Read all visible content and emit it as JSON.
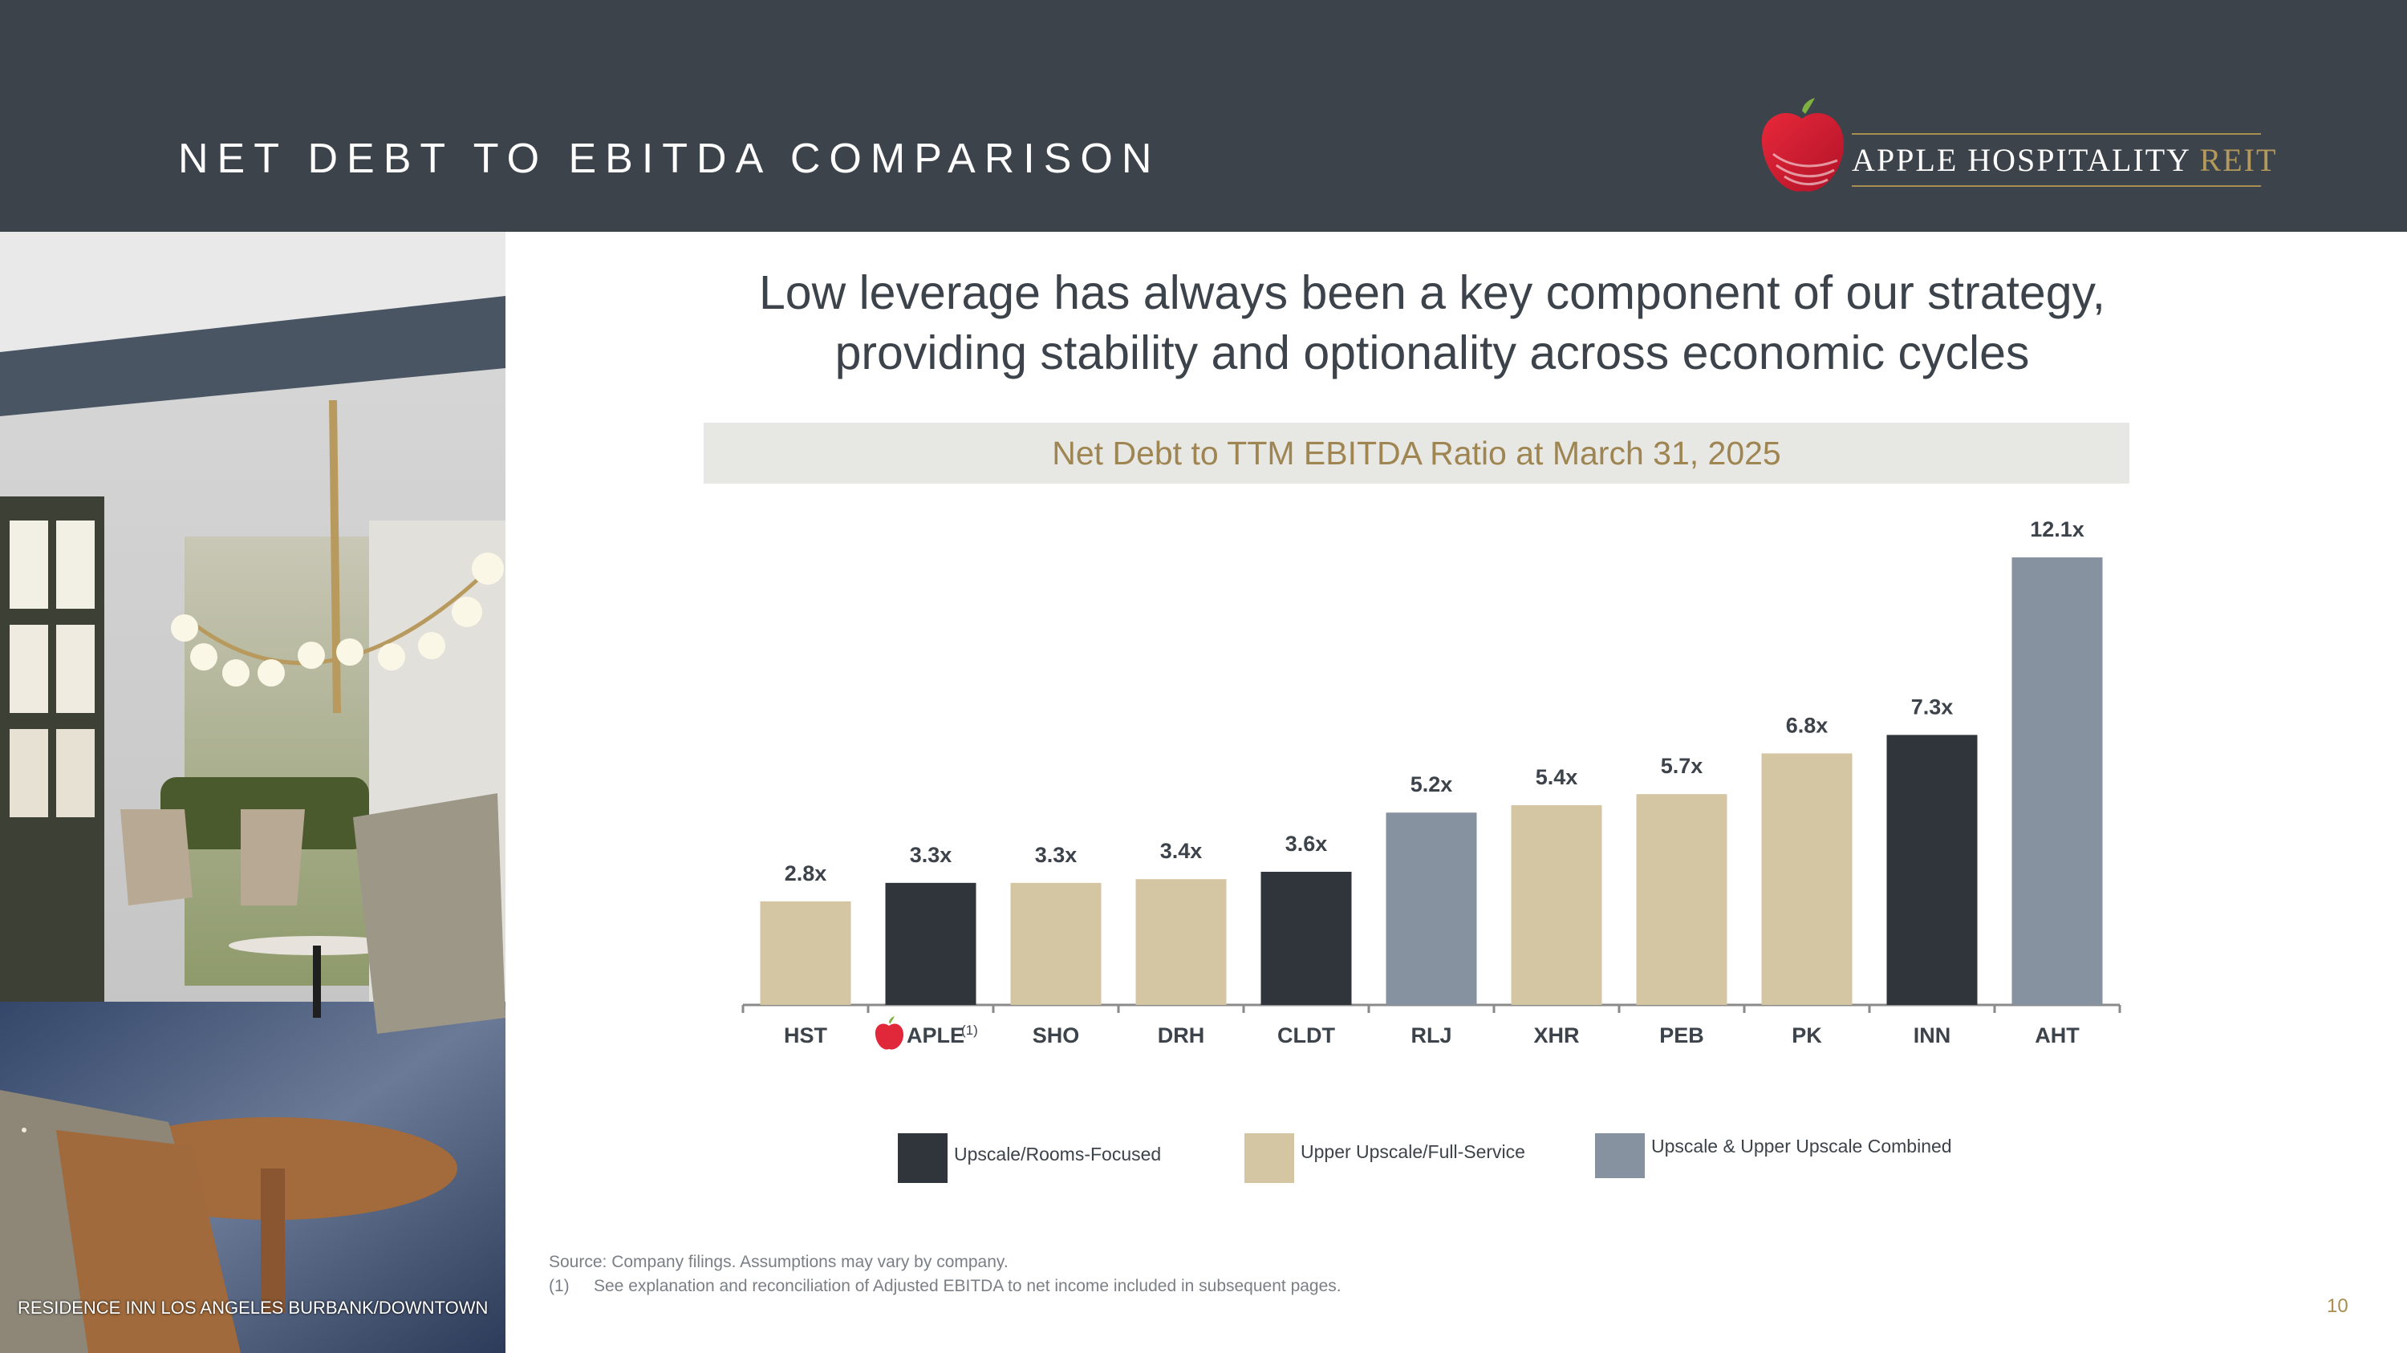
{
  "header": {
    "title": "NET DEBT TO EBITDA COMPARISON",
    "logo_text": "APPLE HOSPITALITY",
    "logo_accent": "REIT"
  },
  "photo": {
    "caption": "RESIDENCE INN LOS ANGELES BURBANK/DOWNTOWN"
  },
  "headline": {
    "line1": "Low leverage has always been a key component of our strategy,",
    "line2": "providing stability and optionality across economic cycles"
  },
  "colors": {
    "header_bg": "#3d434a",
    "gold": "#9e8552",
    "upscale_rooms_focused": "#30353c",
    "upper_upscale_full_service": "#d5c6a3",
    "combined": "#86929f"
  },
  "chart_data": {
    "type": "bar",
    "title": "Net Debt to TTM EBITDA Ratio at March 31, 2025",
    "categories": [
      "HST",
      "APLE",
      "SHO",
      "DRH",
      "CLDT",
      "RLJ",
      "XHR",
      "PEB",
      "PK",
      "INN",
      "AHT"
    ],
    "values": [
      2.8,
      3.3,
      3.3,
      3.4,
      3.6,
      5.2,
      5.4,
      5.7,
      6.8,
      7.3,
      12.1
    ],
    "value_labels": [
      "2.8x",
      "3.3x",
      "3.3x",
      "3.4x",
      "3.6x",
      "5.2x",
      "5.4x",
      "5.7x",
      "6.8x",
      "7.3x",
      "12.1x"
    ],
    "segments": [
      "upper_upscale_full_service",
      "upscale_rooms_focused",
      "upper_upscale_full_service",
      "upper_upscale_full_service",
      "upscale_rooms_focused",
      "combined",
      "upper_upscale_full_service",
      "upper_upscale_full_service",
      "upper_upscale_full_service",
      "upscale_rooms_focused",
      "combined"
    ],
    "footnote_marker": {
      "category": "APLE",
      "text": "(1)"
    },
    "legend": [
      {
        "key": "upscale_rooms_focused",
        "label": "Upscale/Rooms-Focused"
      },
      {
        "key": "upper_upscale_full_service",
        "label": "Upper Upscale/Full-Service"
      },
      {
        "key": "combined",
        "label": "Upscale & Upper Upscale Combined"
      }
    ],
    "legend_position": "bottom",
    "xlabel": "",
    "ylabel": "",
    "ylim": [
      0,
      12.1
    ],
    "grid": false
  },
  "footnotes": {
    "source": "Source: Company filings. Assumptions may vary by company.",
    "note1_marker": "(1)",
    "note1_text": "See explanation and reconciliation of Adjusted EBITDA to net income included in subsequent pages."
  },
  "page_number": "10"
}
